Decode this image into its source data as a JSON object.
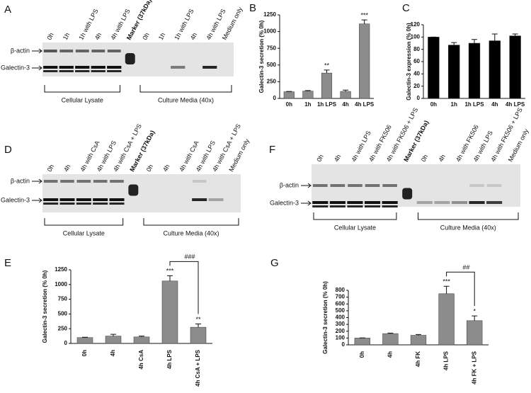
{
  "chart_data": [
    {
      "type": "bar",
      "label": "B",
      "ylabel": "Galectin-3 secretion (% 0h)",
      "categories": [
        "0h",
        "1h",
        "1h LPS",
        "4h",
        "4h LPS"
      ],
      "values": [
        100,
        110,
        380,
        105,
        1115
      ],
      "errors": [
        5,
        8,
        45,
        20,
        60
      ],
      "significance": [
        null,
        null,
        "**",
        null,
        "***"
      ],
      "ylim": [
        0,
        1250
      ],
      "yticks": [
        0,
        250,
        500,
        750,
        1000,
        1250
      ],
      "color": "#8c8c8c"
    },
    {
      "type": "bar",
      "label": "C",
      "ylabel": "Galectin-3 expression (% 0h)",
      "categories": [
        "0h",
        "1h",
        "1h LPS",
        "4h",
        "4h LPS"
      ],
      "values": [
        100,
        87,
        90,
        94,
        102
      ],
      "errors": [
        0,
        4,
        6,
        11,
        3
      ],
      "ylim": [
        0,
        120
      ],
      "yticks": [
        0,
        20,
        40,
        60,
        80,
        100,
        120
      ],
      "color": "#000000"
    },
    {
      "type": "bar",
      "label": "E",
      "ylabel": "Galectin-3 secretion (% 0h)",
      "categories": [
        "0h",
        "4h",
        "4h CsA",
        "4h LPS",
        "4h CsA + LPS"
      ],
      "values": [
        100,
        125,
        110,
        1060,
        275
      ],
      "errors": [
        5,
        30,
        15,
        90,
        55
      ],
      "significance": [
        null,
        null,
        null,
        "***",
        "**"
      ],
      "bracket_label": "###",
      "ylim": [
        0,
        1250
      ],
      "yticks": [
        0,
        250,
        500,
        750,
        1000,
        1250
      ],
      "color": "#8c8c8c"
    },
    {
      "type": "bar",
      "label": "G",
      "ylabel": "Galectin-3 secretion (% 0h)",
      "categories": [
        "0h",
        "4h",
        "4h FK",
        "4h LPS",
        "4h FK + LPS"
      ],
      "values": [
        100,
        165,
        140,
        750,
        355
      ],
      "errors": [
        3,
        8,
        12,
        110,
        70
      ],
      "significance": [
        null,
        null,
        null,
        "***",
        "*"
      ],
      "bracket_label": "##",
      "ylim": [
        0,
        800
      ],
      "yticks": [
        0,
        100,
        200,
        300,
        400,
        500,
        600,
        700,
        800
      ],
      "color": "#8c8c8c"
    }
  ],
  "blots": [
    {
      "label": "A",
      "lanes": [
        "0h",
        "1h",
        "1h with LPS",
        "4h",
        "4h with LPS",
        "Marker (37kDa)",
        "0h",
        "1h",
        "1h with LPS",
        "4h",
        "4h with LPS",
        "Medium only"
      ],
      "bands": [
        "β-actin",
        "Galectin-3"
      ],
      "groups": [
        "Cellular Lysate",
        "Culture Media (40x)"
      ]
    },
    {
      "label": "D",
      "lanes": [
        "0h",
        "4h",
        "4h with CsA",
        "4h with LPS",
        "4h with CsA + LPS",
        "Marker (37kDa)",
        "0h",
        "4h",
        "4h with CsA",
        "4h with LPS",
        "4h with CsA + LPS",
        "Medium only"
      ],
      "bands": [
        "β-actin",
        "Galectin-3"
      ],
      "groups": [
        "Cellular Lysate",
        "Culture Media (40x)"
      ]
    },
    {
      "label": "F",
      "lanes": [
        "0h",
        "4h",
        "4h with LPS",
        "4h with FK506",
        "4h with FK506 + LPS",
        "Marker (37kDa)",
        "0h",
        "4h",
        "4h with FK506",
        "4h with LPS",
        "4h with FK506 + LPS",
        "Medium only"
      ],
      "bands": [
        "β-actin",
        "Galectin-3"
      ],
      "groups": [
        "Cellular Lysate",
        "Culture Media (40x)"
      ]
    }
  ]
}
